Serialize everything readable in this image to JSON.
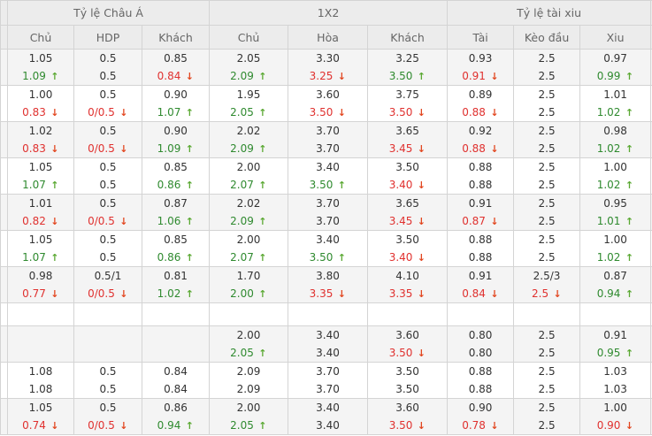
{
  "header": {
    "groups": [
      "Tỷ lệ Châu Á",
      "1X2",
      "Tỷ lệ tài xiu"
    ],
    "columns": [
      "Chủ",
      "HDP",
      "Khách",
      "Chủ",
      "Hòa",
      "Khách",
      "Tài",
      "Kèo đầu",
      "Xiu"
    ]
  },
  "colors": {
    "up": "#2f8a2f",
    "down": "#e0312f",
    "header_bg": "#ececec",
    "row_alt_bg": "#f4f4f4"
  },
  "icons": {
    "up": "arrow-up-icon",
    "down": "arrow-down-icon"
  },
  "rows": [
    [
      [
        "1.05",
        "1.09",
        "up"
      ],
      [
        "0.5",
        "0.5",
        ""
      ],
      [
        "0.85",
        "0.84",
        "down"
      ],
      [
        "2.05",
        "2.09",
        "up"
      ],
      [
        "3.30",
        "3.25",
        "down"
      ],
      [
        "3.25",
        "3.50",
        "up"
      ],
      [
        "0.93",
        "0.91",
        "down"
      ],
      [
        "2.5",
        "2.5",
        ""
      ],
      [
        "0.97",
        "0.99",
        "up"
      ]
    ],
    [
      [
        "1.00",
        "0.83",
        "down"
      ],
      [
        "0.5",
        "0/0.5",
        "down"
      ],
      [
        "0.90",
        "1.07",
        "up"
      ],
      [
        "1.95",
        "2.05",
        "up"
      ],
      [
        "3.60",
        "3.50",
        "down"
      ],
      [
        "3.75",
        "3.50",
        "down"
      ],
      [
        "0.89",
        "0.88",
        "down"
      ],
      [
        "2.5",
        "2.5",
        ""
      ],
      [
        "1.01",
        "1.02",
        "up"
      ]
    ],
    [
      [
        "1.02",
        "0.83",
        "down"
      ],
      [
        "0.5",
        "0/0.5",
        "down"
      ],
      [
        "0.90",
        "1.09",
        "up"
      ],
      [
        "2.02",
        "2.09",
        "up"
      ],
      [
        "3.70",
        "3.70",
        ""
      ],
      [
        "3.65",
        "3.45",
        "down"
      ],
      [
        "0.92",
        "0.88",
        "down"
      ],
      [
        "2.5",
        "2.5",
        ""
      ],
      [
        "0.98",
        "1.02",
        "up"
      ]
    ],
    [
      [
        "1.05",
        "1.07",
        "up"
      ],
      [
        "0.5",
        "0.5",
        ""
      ],
      [
        "0.85",
        "0.86",
        "up"
      ],
      [
        "2.00",
        "2.07",
        "up"
      ],
      [
        "3.40",
        "3.50",
        "up"
      ],
      [
        "3.50",
        "3.40",
        "down"
      ],
      [
        "0.88",
        "0.88",
        ""
      ],
      [
        "2.5",
        "2.5",
        ""
      ],
      [
        "1.00",
        "1.02",
        "up"
      ]
    ],
    [
      [
        "1.01",
        "0.82",
        "down"
      ],
      [
        "0.5",
        "0/0.5",
        "down"
      ],
      [
        "0.87",
        "1.06",
        "up"
      ],
      [
        "2.02",
        "2.09",
        "up"
      ],
      [
        "3.70",
        "3.70",
        ""
      ],
      [
        "3.65",
        "3.45",
        "down"
      ],
      [
        "0.91",
        "0.87",
        "down"
      ],
      [
        "2.5",
        "2.5",
        ""
      ],
      [
        "0.95",
        "1.01",
        "up"
      ]
    ],
    [
      [
        "1.05",
        "1.07",
        "up"
      ],
      [
        "0.5",
        "0.5",
        ""
      ],
      [
        "0.85",
        "0.86",
        "up"
      ],
      [
        "2.00",
        "2.07",
        "up"
      ],
      [
        "3.40",
        "3.50",
        "up"
      ],
      [
        "3.50",
        "3.40",
        "down"
      ],
      [
        "0.88",
        "0.88",
        ""
      ],
      [
        "2.5",
        "2.5",
        ""
      ],
      [
        "1.00",
        "1.02",
        "up"
      ]
    ],
    [
      [
        "0.98",
        "0.77",
        "down"
      ],
      [
        "0.5/1",
        "0/0.5",
        "down"
      ],
      [
        "0.81",
        "1.02",
        "up"
      ],
      [
        "1.70",
        "2.00",
        "up"
      ],
      [
        "3.80",
        "3.35",
        "down"
      ],
      [
        "4.10",
        "3.35",
        "down"
      ],
      [
        "0.91",
        "0.84",
        "down"
      ],
      [
        "2.5/3",
        "2.5",
        "down"
      ],
      [
        "0.87",
        "0.94",
        "up"
      ]
    ],
    [],
    [
      [
        "",
        "",
        ""
      ],
      [
        "",
        "",
        ""
      ],
      [
        "",
        "",
        ""
      ],
      [
        "2.00",
        "2.05",
        "up"
      ],
      [
        "3.40",
        "3.40",
        ""
      ],
      [
        "3.60",
        "3.50",
        "down"
      ],
      [
        "0.80",
        "0.80",
        ""
      ],
      [
        "2.5",
        "2.5",
        ""
      ],
      [
        "0.91",
        "0.95",
        "up"
      ]
    ],
    [
      [
        "1.08",
        "1.08",
        ""
      ],
      [
        "0.5",
        "0.5",
        ""
      ],
      [
        "0.84",
        "0.84",
        ""
      ],
      [
        "2.09",
        "2.09",
        ""
      ],
      [
        "3.70",
        "3.70",
        ""
      ],
      [
        "3.50",
        "3.50",
        ""
      ],
      [
        "0.88",
        "0.88",
        ""
      ],
      [
        "2.5",
        "2.5",
        ""
      ],
      [
        "1.03",
        "1.03",
        ""
      ]
    ],
    [
      [
        "1.05",
        "0.74",
        "down"
      ],
      [
        "0.5",
        "0/0.5",
        "down"
      ],
      [
        "0.86",
        "0.94",
        "up"
      ],
      [
        "2.00",
        "2.05",
        "up"
      ],
      [
        "3.40",
        "3.40",
        ""
      ],
      [
        "3.60",
        "3.50",
        "down"
      ],
      [
        "0.90",
        "0.78",
        "down"
      ],
      [
        "2.5",
        "2.5",
        ""
      ],
      [
        "1.00",
        "0.90",
        "down"
      ]
    ]
  ]
}
